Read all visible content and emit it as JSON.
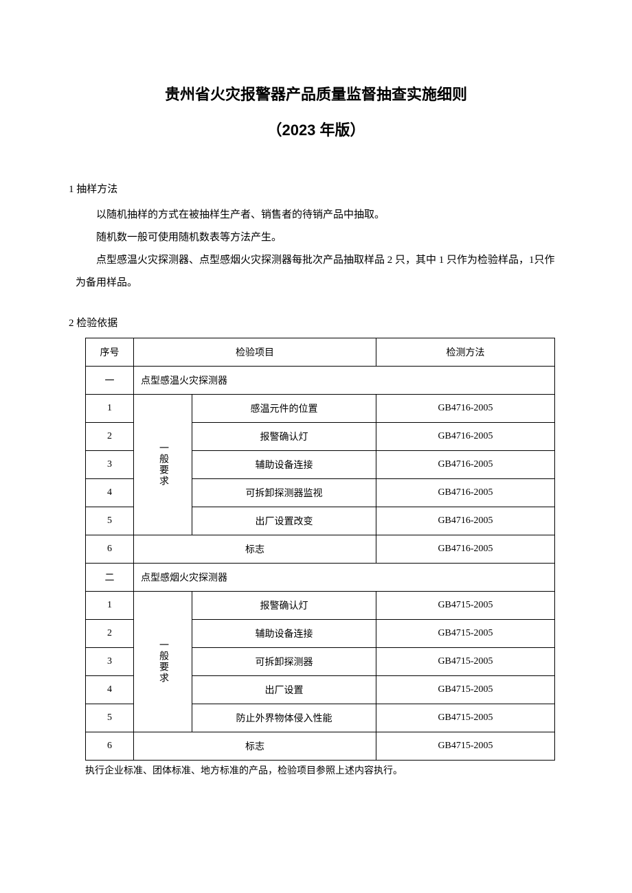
{
  "title": {
    "main": "贵州省火灾报警器产品质量监督抽查实施细则",
    "year": "（2023 年版）"
  },
  "section1": {
    "heading": "1 抽样方法",
    "p1": "以随机抽样的方式在被抽样生产者、销售者的待销产品中抽取。",
    "p2": "随机数一般可使用随机数表等方法产生。",
    "p3": "点型感温火灾探测器、点型感烟火灾探测器每批次产品抽取样品 2 只，其中 1 只作为检验样品，1只作为备用样品。"
  },
  "section2": {
    "heading": "2 检验依据",
    "table": {
      "headers": [
        "序号",
        "检验项目",
        "检测方法"
      ],
      "group1": {
        "seq": "一",
        "title": "点型感温火灾探测器",
        "cat_label": "一般要求",
        "rows": [
          {
            "n": "1",
            "item": "感温元件的位置",
            "method": "GB4716-2005"
          },
          {
            "n": "2",
            "item": "报警确认灯",
            "method": "GB4716-2005"
          },
          {
            "n": "3",
            "item": "辅助设备连接",
            "method": "GB4716-2005"
          },
          {
            "n": "4",
            "item": "可拆卸探测器监视",
            "method": "GB4716-2005"
          },
          {
            "n": "5",
            "item": "出厂设置改变",
            "method": "GB4716-2005"
          }
        ],
        "last": {
          "n": "6",
          "item": "标志",
          "method": "GB4716-2005"
        }
      },
      "group2": {
        "seq": "二",
        "title": "点型感烟火灾探测器",
        "cat_label": "一般要求",
        "rows": [
          {
            "n": "1",
            "item": "报警确认灯",
            "method": "GB4715-2005"
          },
          {
            "n": "2",
            "item": "辅助设备连接",
            "method": "GB4715-2005"
          },
          {
            "n": "3",
            "item": "可拆卸探测器",
            "method": "GB4715-2005"
          },
          {
            "n": "4",
            "item": "出厂设置",
            "method": "GB4715-2005"
          },
          {
            "n": "5",
            "item": "防止外界物体侵入性能",
            "method": "GB4715-2005"
          }
        ],
        "last": {
          "n": "6",
          "item": "标志",
          "method": "GB4715-2005"
        }
      }
    },
    "note": "执行企业标准、团体标准、地方标准的产品，检验项目参照上述内容执行。"
  },
  "colors": {
    "text": "#000000",
    "background": "#ffffff",
    "border": "#000000"
  }
}
